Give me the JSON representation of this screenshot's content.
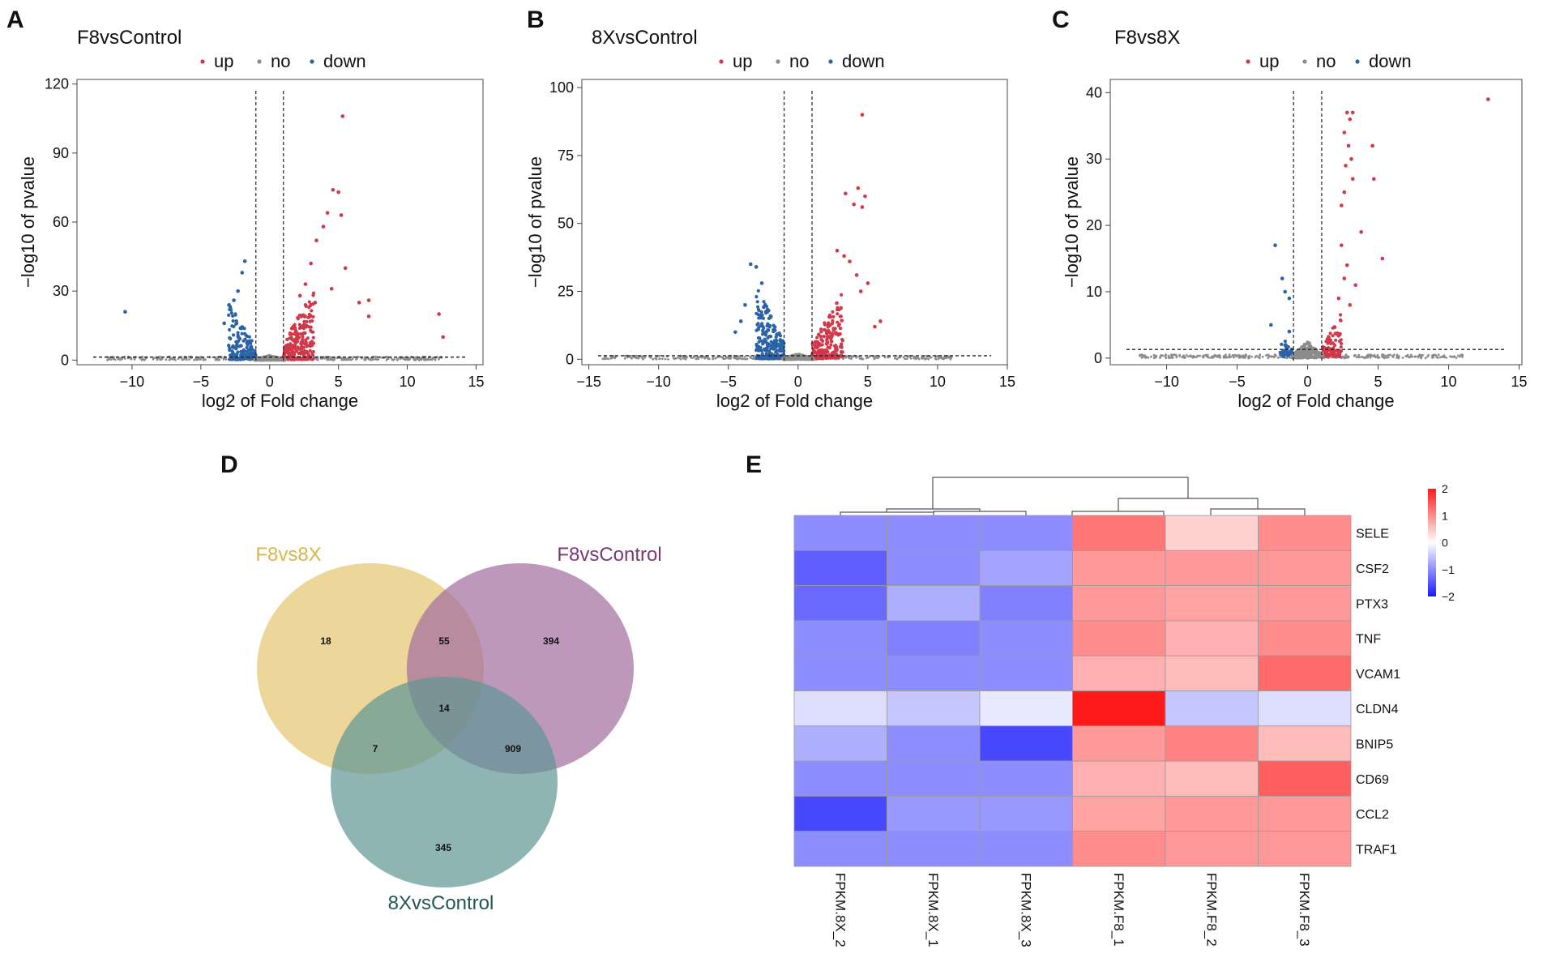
{
  "chart_data": [
    {
      "type": "scatter",
      "panel": "A",
      "title": "F8vsControl",
      "xlabel": "log2 of Fold change",
      "ylabel": "−log10 of pvalue",
      "xlim": [
        -14,
        15.5
      ],
      "ylim": [
        -2,
        122
      ],
      "xticks": [
        -10,
        -5,
        0,
        5,
        10,
        15
      ],
      "xtick_labels": [
        "−10",
        "−5",
        "0",
        "5",
        "10",
        "15"
      ],
      "yticks": [
        0,
        30,
        60,
        90,
        120
      ],
      "ytick_labels": [
        "0",
        "30",
        "60",
        "90",
        "120"
      ],
      "fc_lines": [
        -1,
        1
      ],
      "p_line": 1.3,
      "legend": [
        {
          "label": "up",
          "color": "#d0394b"
        },
        {
          "label": "no",
          "color": "#8c8c8c"
        },
        {
          "label": "down",
          "color": "#2a63a8"
        }
      ],
      "up_points": [
        [
          5.3,
          106
        ],
        [
          4.6,
          74
        ],
        [
          5.0,
          73
        ],
        [
          4.2,
          64
        ],
        [
          3.9,
          58
        ],
        [
          5.2,
          63
        ],
        [
          5.5,
          40
        ],
        [
          3.4,
          52
        ],
        [
          3.0,
          42
        ],
        [
          6.5,
          25
        ],
        [
          7.2,
          26
        ],
        [
          7.2,
          19
        ],
        [
          12.3,
          20
        ],
        [
          12.6,
          10
        ],
        [
          2.6,
          33
        ],
        [
          2.2,
          28
        ],
        [
          4.5,
          31
        ],
        [
          3.3,
          25
        ]
      ],
      "down_points": [
        [
          -10.5,
          21
        ],
        [
          -1.8,
          43
        ],
        [
          -2.0,
          38
        ],
        [
          -2.3,
          30
        ],
        [
          -2.6,
          26
        ],
        [
          -2.9,
          22
        ],
        [
          -3.3,
          16
        ]
      ],
      "clouds": [
        {
          "side": "up",
          "x0": 1.0,
          "x1": 3.2,
          "ymax": 28,
          "n": 230,
          "seed": 11
        },
        {
          "side": "down",
          "x0": -1.0,
          "x1": -3.0,
          "ymax": 22,
          "n": 150,
          "seed": 12
        },
        {
          "side": "no",
          "x0": -1.1,
          "x1": 1.1,
          "ymax": 2,
          "n": 260,
          "seed": 13
        }
      ],
      "no_range": [
        -12,
        12.5
      ]
    },
    {
      "type": "scatter",
      "panel": "B",
      "title": "8XvsControl",
      "xlabel": "log2 of Fold change",
      "ylabel": "−log10 of pvalue",
      "xlim": [
        -15.5,
        15
      ],
      "ylim": [
        -2,
        103
      ],
      "xticks": [
        -15,
        -10,
        -5,
        0,
        5,
        10,
        15
      ],
      "xtick_labels": [
        "−15",
        "−10",
        "−5",
        "0",
        "5",
        "10",
        "15"
      ],
      "yticks": [
        0,
        25,
        50,
        75,
        100
      ],
      "ytick_labels": [
        "0",
        "25",
        "50",
        "75",
        "100"
      ],
      "fc_lines": [
        -1,
        1
      ],
      "p_line": 1.3,
      "legend": [
        {
          "label": "up",
          "color": "#d0394b"
        },
        {
          "label": "no",
          "color": "#8c8c8c"
        },
        {
          "label": "down",
          "color": "#2a63a8"
        }
      ],
      "up_points": [
        [
          4.6,
          90
        ],
        [
          4.3,
          63
        ],
        [
          3.4,
          61
        ],
        [
          4.8,
          60
        ],
        [
          4.0,
          57
        ],
        [
          4.6,
          56
        ],
        [
          3.3,
          38
        ],
        [
          3.7,
          36
        ],
        [
          4.2,
          31
        ],
        [
          5.0,
          28
        ],
        [
          5.9,
          14
        ],
        [
          5.5,
          12
        ],
        [
          2.8,
          40
        ],
        [
          4.5,
          25
        ]
      ],
      "down_points": [
        [
          -3.4,
          35
        ],
        [
          -3.0,
          34
        ],
        [
          -2.6,
          28
        ],
        [
          -3.8,
          20
        ],
        [
          -4.1,
          14
        ],
        [
          -4.5,
          10
        ]
      ],
      "clouds": [
        {
          "side": "up",
          "x0": 1.0,
          "x1": 3.2,
          "ymax": 22,
          "n": 200,
          "seed": 21
        },
        {
          "side": "down",
          "x0": -1.0,
          "x1": -3.0,
          "ymax": 24,
          "n": 220,
          "seed": 22
        },
        {
          "side": "no",
          "x0": -1.1,
          "x1": 1.1,
          "ymax": 2,
          "n": 260,
          "seed": 23
        }
      ],
      "no_range": [
        -14,
        11
      ]
    },
    {
      "type": "scatter",
      "panel": "C",
      "title": "F8vs8X",
      "xlabel": "log2 of Fold change",
      "ylabel": "−log10 of pvalue",
      "xlim": [
        -14,
        15.2
      ],
      "ylim": [
        -1,
        42
      ],
      "xticks": [
        -10,
        -5,
        0,
        5,
        10,
        15
      ],
      "xtick_labels": [
        "−10",
        "−5",
        "0",
        "5",
        "10",
        "15"
      ],
      "yticks": [
        0,
        10,
        20,
        30,
        40
      ],
      "ytick_labels": [
        "0",
        "10",
        "20",
        "30",
        "40"
      ],
      "fc_lines": [
        -1,
        1
      ],
      "p_line": 1.3,
      "legend": [
        {
          "label": "up",
          "color": "#d0394b"
        },
        {
          "label": "no",
          "color": "#8c8c8c"
        },
        {
          "label": "down",
          "color": "#2a63a8"
        }
      ],
      "up_points": [
        [
          12.8,
          39
        ],
        [
          2.8,
          37
        ],
        [
          3.2,
          37
        ],
        [
          3.0,
          36
        ],
        [
          2.6,
          34
        ],
        [
          2.9,
          32
        ],
        [
          4.6,
          32
        ],
        [
          3.1,
          30
        ],
        [
          2.7,
          29
        ],
        [
          4.7,
          27
        ],
        [
          3.2,
          27
        ],
        [
          2.6,
          25
        ],
        [
          2.4,
          23
        ],
        [
          3.8,
          19
        ],
        [
          5.3,
          15
        ],
        [
          2.4,
          17
        ],
        [
          3.4,
          11
        ],
        [
          2.8,
          14
        ],
        [
          2.2,
          9
        ],
        [
          2.6,
          12
        ],
        [
          3.0,
          8
        ]
      ],
      "down_points": [
        [
          -2.3,
          17
        ],
        [
          -1.8,
          12
        ],
        [
          -1.6,
          10
        ],
        [
          -1.3,
          9
        ],
        [
          -2.6,
          5
        ],
        [
          -1.3,
          4
        ]
      ],
      "clouds": [
        {
          "side": "up",
          "x0": 1.0,
          "x1": 2.4,
          "ymax": 6,
          "n": 90,
          "seed": 31
        },
        {
          "side": "down",
          "x0": -1.0,
          "x1": -2.0,
          "ymax": 3.5,
          "n": 40,
          "seed": 32
        },
        {
          "side": "no",
          "x0": -1.1,
          "x1": 1.1,
          "ymax": 2.5,
          "n": 220,
          "seed": 33
        }
      ],
      "no_range": [
        -12,
        11
      ]
    },
    {
      "type": "venn",
      "panel": "D",
      "sets": [
        {
          "label": "F8vs8X",
          "color": "#e4c56f",
          "label_color": "#d9b64c"
        },
        {
          "label": "F8vsControl",
          "color": "#a36c9e",
          "label_color": "#7a3876"
        },
        {
          "label": "8XvsControl",
          "color": "#5e9694",
          "label_color": "#1f5553"
        }
      ],
      "regions": [
        {
          "sets": [
            "F8vs8X"
          ],
          "count": 18
        },
        {
          "sets": [
            "F8vs8X",
            "F8vsControl"
          ],
          "count": 55
        },
        {
          "sets": [
            "F8vsControl"
          ],
          "count": 394
        },
        {
          "sets": [
            "F8vs8X",
            "F8vsControl",
            "8XvsControl"
          ],
          "count": 14
        },
        {
          "sets": [
            "F8vs8X",
            "8XvsControl"
          ],
          "count": 7
        },
        {
          "sets": [
            "F8vsControl",
            "8XvsControl"
          ],
          "count": 909
        },
        {
          "sets": [
            "8XvsControl"
          ],
          "count": 345
        }
      ]
    },
    {
      "type": "heatmap",
      "panel": "E",
      "rows": [
        "SELE",
        "CSF2",
        "PTX3",
        "TNF",
        "VCAM1",
        "CLDN4",
        "BNIP5",
        "CD69",
        "CCL2",
        "TRAF1"
      ],
      "columns": [
        "FPKM.8X_2",
        "FPKM.8X_1",
        "FPKM.8X_3",
        "FPKM.F8_1",
        "FPKM.F8_2",
        "FPKM.F8_3"
      ],
      "values": [
        [
          -1.0,
          -1.0,
          -1.0,
          1.2,
          0.4,
          1.0
        ],
        [
          -1.4,
          -1.0,
          -0.8,
          0.9,
          0.9,
          0.9
        ],
        [
          -1.3,
          -0.7,
          -1.1,
          0.9,
          0.8,
          0.9
        ],
        [
          -1.0,
          -1.1,
          -1.0,
          1.0,
          0.7,
          1.0
        ],
        [
          -1.0,
          -1.0,
          -1.0,
          0.7,
          0.6,
          1.3
        ],
        [
          -0.3,
          -0.5,
          -0.2,
          2.0,
          -0.5,
          -0.3
        ],
        [
          -0.7,
          -1.0,
          -1.6,
          0.9,
          1.1,
          0.6
        ],
        [
          -1.0,
          -1.0,
          -1.0,
          0.7,
          0.6,
          1.4
        ],
        [
          -1.6,
          -0.9,
          -0.9,
          0.8,
          0.9,
          0.9
        ],
        [
          -1.0,
          -1.0,
          -1.0,
          1.0,
          0.9,
          0.9
        ]
      ],
      "colorbar": {
        "min": -2,
        "max": 2,
        "ticks": [
          2,
          1,
          0,
          -1,
          -2
        ],
        "tick_labels": [
          "2",
          "1",
          "0",
          "−1",
          "−2"
        ]
      }
    }
  ]
}
